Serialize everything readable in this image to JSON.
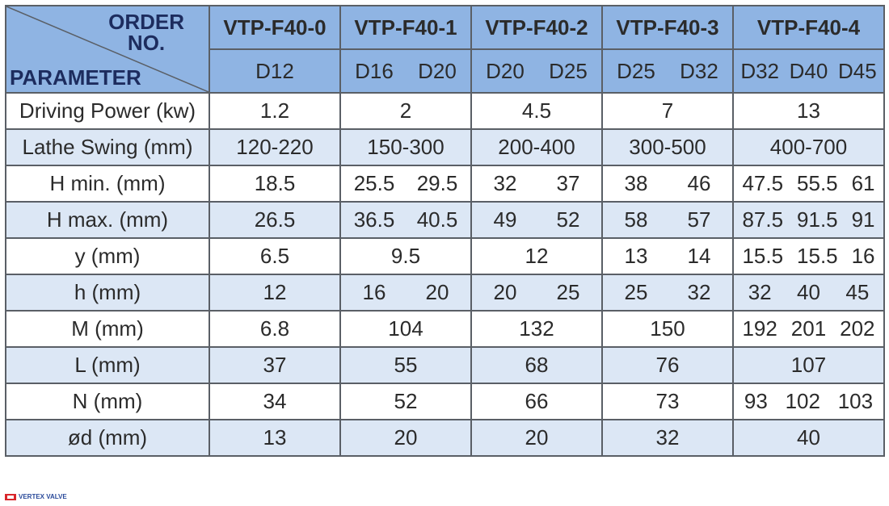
{
  "header": {
    "order": "ORDER",
    "no": "NO.",
    "parameter": "PARAMETER",
    "models": [
      "VTP-F40-0",
      "VTP-F40-1",
      "VTP-F40-2",
      "VTP-F40-3",
      "VTP-F40-4"
    ],
    "sizes": [
      [
        "D12"
      ],
      [
        "D16",
        "D20"
      ],
      [
        "D20",
        "D25"
      ],
      [
        "D25",
        "D32"
      ],
      [
        "D32",
        "D40",
        "D45"
      ]
    ]
  },
  "table": {
    "rows": [
      {
        "label": "Driving Power (kw)",
        "cells": [
          [
            "1.2"
          ],
          [
            "2"
          ],
          [
            "4.5"
          ],
          [
            "7"
          ],
          [
            "13"
          ]
        ]
      },
      {
        "label": "Lathe Swing (mm)",
        "cells": [
          [
            "120-220"
          ],
          [
            "150-300"
          ],
          [
            "200-400"
          ],
          [
            "300-500"
          ],
          [
            "400-700"
          ]
        ]
      },
      {
        "label": "H min. (mm)",
        "cells": [
          [
            "18.5"
          ],
          [
            "25.5",
            "29.5"
          ],
          [
            "32",
            "37"
          ],
          [
            "38",
            "46"
          ],
          [
            "47.5",
            "55.5",
            "61"
          ]
        ]
      },
      {
        "label": "H max. (mm)",
        "cells": [
          [
            "26.5"
          ],
          [
            "36.5",
            "40.5"
          ],
          [
            "49",
            "52"
          ],
          [
            "58",
            "57"
          ],
          [
            "87.5",
            "91.5",
            "91"
          ]
        ]
      },
      {
        "label": "y (mm)",
        "cells": [
          [
            "6.5"
          ],
          [
            "9.5"
          ],
          [
            "12"
          ],
          [
            "13",
            "14"
          ],
          [
            "15.5",
            "15.5",
            "16"
          ]
        ]
      },
      {
        "label": "h (mm)",
        "cells": [
          [
            "12"
          ],
          [
            "16",
            "20"
          ],
          [
            "20",
            "25"
          ],
          [
            "25",
            "32"
          ],
          [
            "32",
            "40",
            "45"
          ]
        ]
      },
      {
        "label": "M (mm)",
        "cells": [
          [
            "6.8"
          ],
          [
            "104"
          ],
          [
            "132"
          ],
          [
            "150"
          ],
          [
            "192",
            "201",
            "202"
          ]
        ]
      },
      {
        "label": "L (mm)",
        "cells": [
          [
            "37"
          ],
          [
            "55"
          ],
          [
            "68"
          ],
          [
            "76"
          ],
          [
            "107"
          ]
        ]
      },
      {
        "label": "N (mm)",
        "cells": [
          [
            "34"
          ],
          [
            "52"
          ],
          [
            "66"
          ],
          [
            "73"
          ],
          [
            "93",
            "102",
            "103"
          ]
        ]
      },
      {
        "label": "ød (mm)",
        "cells": [
          [
            "13"
          ],
          [
            "20"
          ],
          [
            "20"
          ],
          [
            "32"
          ],
          [
            "40"
          ]
        ]
      }
    ]
  },
  "footer": {
    "logo": "VERTEX VALVE"
  }
}
